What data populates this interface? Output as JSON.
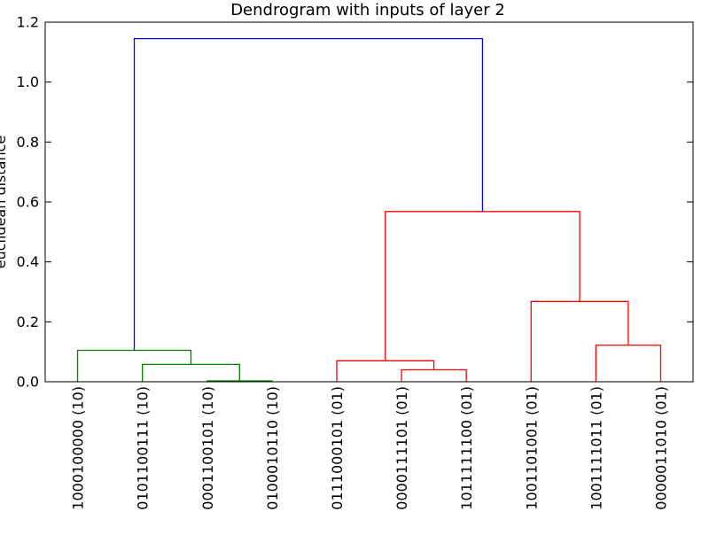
{
  "chart_data": {
    "type": "dendrogram",
    "title": "Dendrogram with inputs of layer 2",
    "xlabel": "",
    "ylabel": "euclidean distance",
    "ylim": [
      0,
      1.2
    ],
    "yticks": [
      0.0,
      0.2,
      0.4,
      0.6,
      0.8,
      1.0,
      1.2
    ],
    "ytick_labels": [
      "0.0",
      "0.2",
      "0.4",
      "0.6",
      "0.8",
      "1.0",
      "1.2"
    ],
    "grid": false,
    "leaves": [
      "1000100000 (10)",
      "0101100111 (10)",
      "0001100101 (10)",
      "0100010110 (10)",
      "0111000101 (01)",
      "0000111101 (01)",
      "1011111100 (01)",
      "1001101001 (01)",
      "1001111011 (01)",
      "0000011010 (01)"
    ],
    "merges": [
      {
        "left": "leaf:2",
        "right": "leaf:3",
        "height": 0.003,
        "color": "#008000"
      },
      {
        "left": "leaf:1",
        "right": "node:0",
        "height": 0.058,
        "color": "#008000"
      },
      {
        "left": "leaf:0",
        "right": "node:1",
        "height": 0.105,
        "color": "#008000"
      },
      {
        "left": "leaf:5",
        "right": "leaf:6",
        "height": 0.04,
        "color": "#ff0000"
      },
      {
        "left": "leaf:4",
        "right": "node:3",
        "height": 0.07,
        "color": "#ff0000"
      },
      {
        "left": "leaf:8",
        "right": "leaf:9",
        "height": 0.122,
        "color": "#ff0000"
      },
      {
        "left": "leaf:7",
        "right": "node:5",
        "height": 0.268,
        "color": "#ff0000"
      },
      {
        "left": "node:4",
        "right": "node:6",
        "height": 0.568,
        "color": "#ff0000"
      },
      {
        "left": "node:2",
        "right": "node:7",
        "height": 1.145,
        "color": "#0000ff"
      }
    ],
    "colors": {
      "cluster_10": "#008000",
      "cluster_01": "#ff0000",
      "root_link": "#0000ff",
      "axes": "#000000"
    }
  }
}
